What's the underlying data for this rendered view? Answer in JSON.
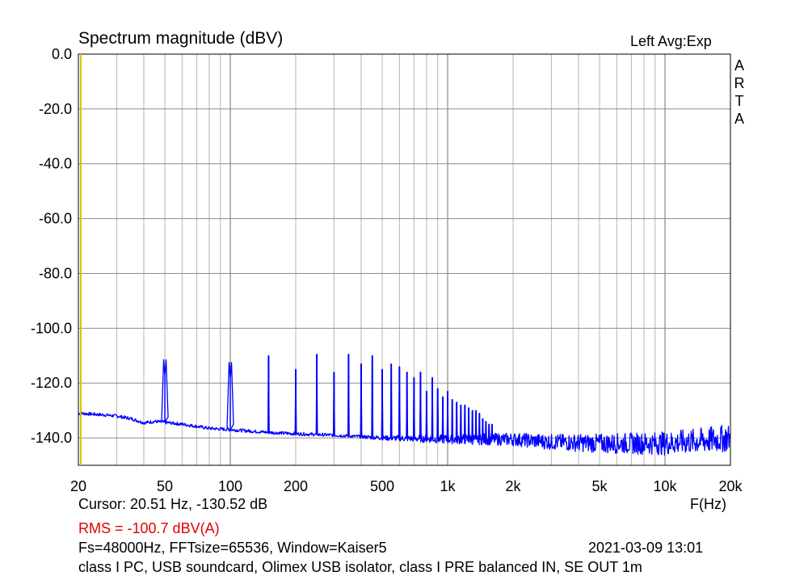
{
  "chart_data": {
    "type": "line",
    "title": "Spectrum magnitude (dBV)",
    "channel": "Left  Avg:Exp",
    "brand": "ARTA",
    "xlabel": "F(Hz)",
    "x_scale": "log",
    "xlim": [
      20,
      20000
    ],
    "ylim": [
      -150,
      0
    ],
    "x_ticks": [
      {
        "value": 20,
        "label": "20"
      },
      {
        "value": 50,
        "label": "50"
      },
      {
        "value": 100,
        "label": "100"
      },
      {
        "value": 200,
        "label": "200"
      },
      {
        "value": 500,
        "label": "500"
      },
      {
        "value": 1000,
        "label": "1k"
      },
      {
        "value": 2000,
        "label": "2k"
      },
      {
        "value": 5000,
        "label": "5k"
      },
      {
        "value": 10000,
        "label": "10k"
      },
      {
        "value": 20000,
        "label": "20k"
      }
    ],
    "y_ticks": [
      {
        "value": 0,
        "label": "0.0"
      },
      {
        "value": -20,
        "label": "-20.0"
      },
      {
        "value": -40,
        "label": "-40.0"
      },
      {
        "value": -60,
        "label": "-60.0"
      },
      {
        "value": -80,
        "label": "-80.0"
      },
      {
        "value": -100,
        "label": "-100.0"
      },
      {
        "value": -120,
        "label": "-120.0"
      },
      {
        "value": -140,
        "label": "-140.0"
      }
    ],
    "grid": true,
    "cursor_x": 20.51,
    "series": [
      {
        "color": "#0000ff",
        "floor": [
          [
            20,
            -131
          ],
          [
            25,
            -131.5
          ],
          [
            30,
            -132
          ],
          [
            35,
            -133
          ],
          [
            40,
            -134.5
          ],
          [
            45,
            -134
          ],
          [
            60,
            -135
          ],
          [
            80,
            -136.5
          ],
          [
            100,
            -137
          ],
          [
            150,
            -138
          ],
          [
            200,
            -138.5
          ],
          [
            300,
            -139
          ],
          [
            500,
            -140
          ],
          [
            1000,
            -140.5
          ],
          [
            2000,
            -140.5
          ],
          [
            3000,
            -141.5
          ],
          [
            5000,
            -142
          ],
          [
            8000,
            -142
          ],
          [
            10000,
            -142
          ],
          [
            15000,
            -141
          ],
          [
            20000,
            -140
          ]
        ],
        "peaks": [
          [
            50,
            -117.5
          ],
          [
            100,
            -118.5
          ],
          [
            150,
            -110
          ],
          [
            200,
            -115
          ],
          [
            250,
            -109.5
          ],
          [
            300,
            -116
          ],
          [
            350,
            -109.5
          ],
          [
            400,
            -113
          ],
          [
            450,
            -110
          ],
          [
            500,
            -115
          ],
          [
            550,
            -113
          ],
          [
            600,
            -114
          ],
          [
            650,
            -116
          ],
          [
            700,
            -118
          ],
          [
            750,
            -116
          ],
          [
            800,
            -123
          ],
          [
            850,
            -118
          ],
          [
            900,
            -122
          ],
          [
            950,
            -125
          ],
          [
            1000,
            -123
          ],
          [
            1050,
            -126
          ],
          [
            1100,
            -127
          ],
          [
            1150,
            -128
          ],
          [
            1200,
            -128
          ],
          [
            1250,
            -129
          ],
          [
            1300,
            -130
          ],
          [
            1350,
            -130
          ],
          [
            1400,
            -131
          ],
          [
            1450,
            -133
          ],
          [
            1500,
            -134
          ],
          [
            1550,
            -135
          ],
          [
            1600,
            -135
          ]
        ]
      }
    ]
  },
  "footer": {
    "cursor": "Cursor: 20.51 Hz, -130.52 dB",
    "rms": "RMS = -100.7 dBV(A)",
    "params": "Fs=48000Hz, FFTsize=65536, Window=Kaiser5",
    "datetime": "2021-03-09  13:01",
    "description": "class I PC, USB soundcard, Olimex USB isolator, class I PRE balanced IN, SE OUT 1m"
  },
  "colors": {
    "trace": "#0000ff",
    "cursor": "#d4c300",
    "rms": "#e00000",
    "grid": "#b4b4b4"
  }
}
